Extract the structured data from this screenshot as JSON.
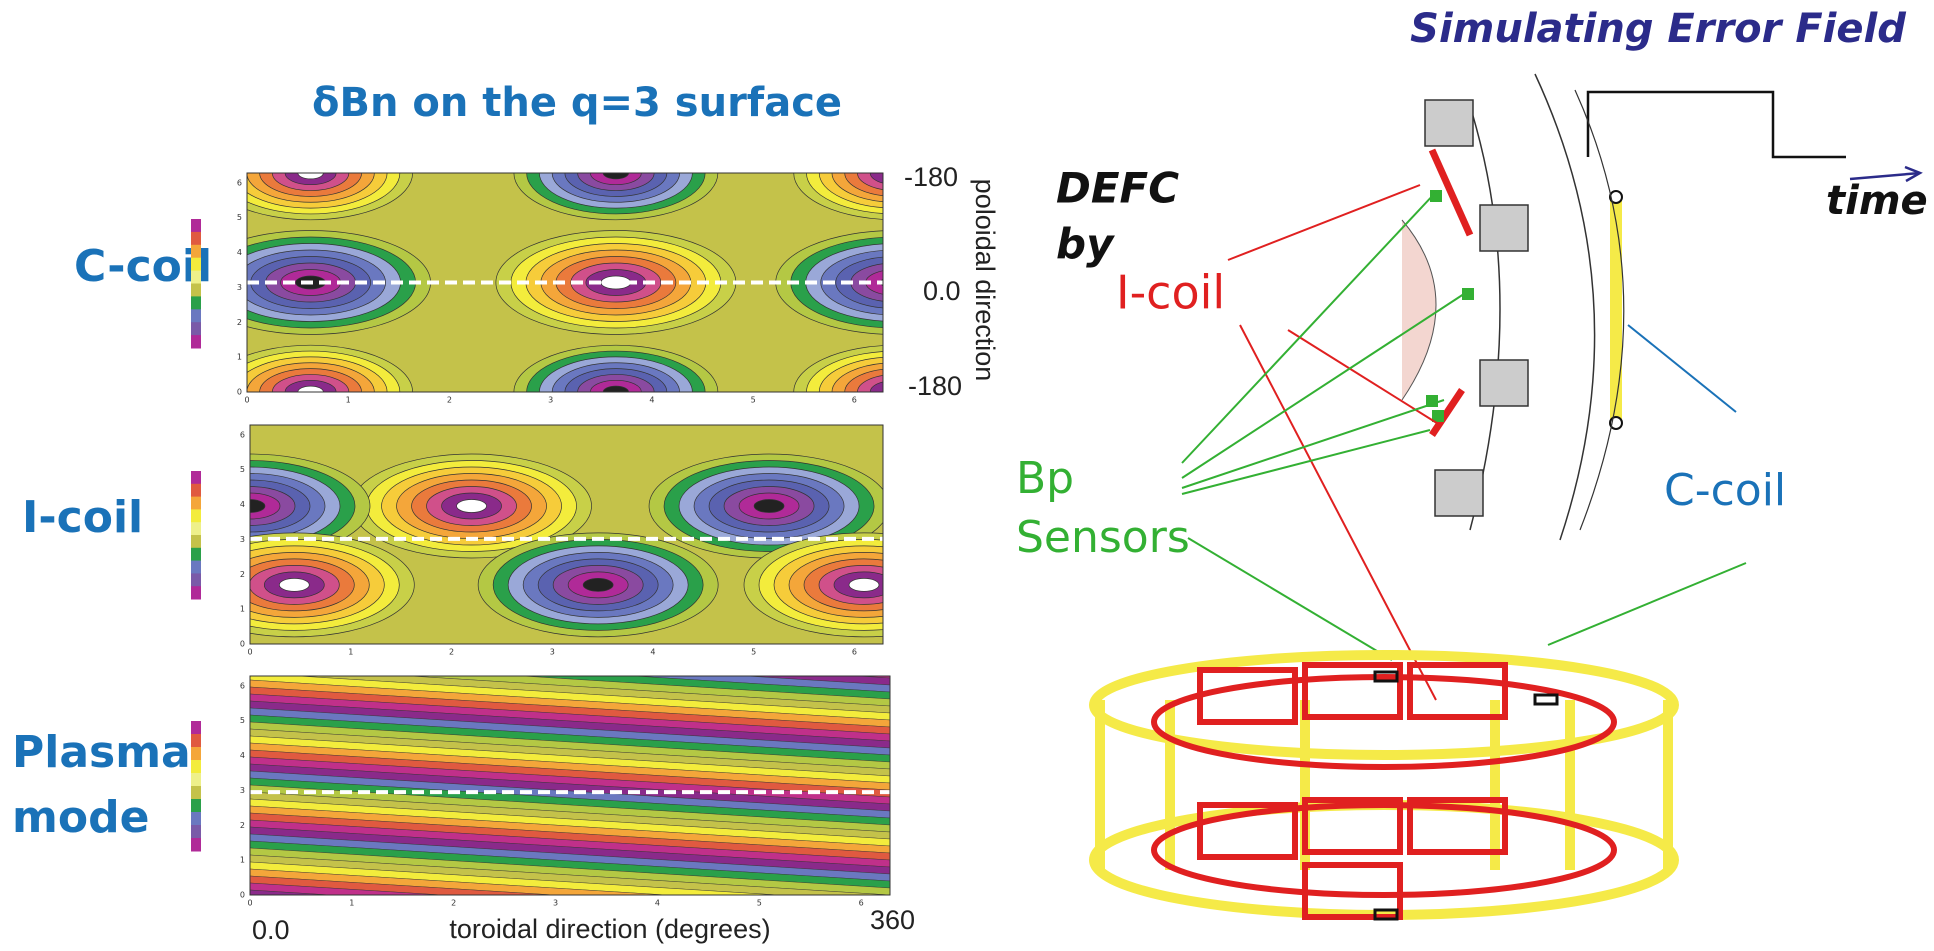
{
  "left": {
    "title": "δBn on the q=3 surface",
    "panels": [
      {
        "label": [
          "C-coil"
        ]
      },
      {
        "label": [
          "I-coil"
        ]
      },
      {
        "label": [
          "Plasma",
          "mode"
        ]
      }
    ],
    "right_axis": {
      "labels": [
        "-180",
        "0.0",
        "-180"
      ],
      "title": "poloidal direction"
    },
    "bottom_axis": {
      "start": "0.0",
      "title": "toroidal direction (degrees)",
      "end": "360"
    },
    "small_ticks": [
      "0",
      "1",
      "2",
      "3",
      "4",
      "5",
      "6"
    ]
  },
  "right": {
    "title": "Simulating Error Field",
    "time": "time",
    "defc": "DEFC",
    "by": "by",
    "icoil": "I-coil",
    "bp": "Bp",
    "sensors": "Sensors",
    "ccoil": "C-coil"
  }
}
